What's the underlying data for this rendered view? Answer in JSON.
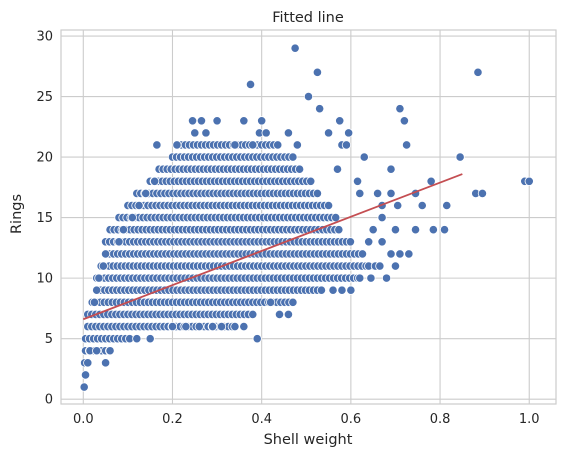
{
  "chart_data": {
    "type": "scatter",
    "title": "Fitted line",
    "xlabel": "Shell weight",
    "ylabel": "Rings",
    "xlim": [
      -0.05,
      1.06
    ],
    "ylim": [
      -0.4,
      30.5
    ],
    "xticks": [
      0.0,
      0.2,
      0.4,
      0.6,
      0.8,
      1.0
    ],
    "xtick_labels": [
      "0.0",
      "0.2",
      "0.4",
      "0.6",
      "0.8",
      "1.0"
    ],
    "yticks": [
      0,
      5,
      10,
      15,
      20,
      25,
      30
    ],
    "ytick_labels": [
      "0",
      "5",
      "10",
      "15",
      "20",
      "25",
      "30"
    ],
    "grid": true,
    "colors": {
      "points": "#4c72b0",
      "point_edge": "#ffffff",
      "fit_line": "#c44e52",
      "grid": "#cccccc",
      "spine": "#cccccc"
    },
    "band": {
      "description_of_dense_cloud": "",
      "rows": [
        {
          "y": 4,
          "x_min": 0.005,
          "x_max": 0.06
        },
        {
          "y": 5,
          "x_min": 0.005,
          "x_max": 0.11
        },
        {
          "y": 6,
          "x_min": 0.01,
          "x_max": 0.34
        },
        {
          "y": 7,
          "x_min": 0.01,
          "x_max": 0.37
        },
        {
          "y": 8,
          "x_min": 0.02,
          "x_max": 0.47
        },
        {
          "y": 9,
          "x_min": 0.03,
          "x_max": 0.54
        },
        {
          "y": 10,
          "x_min": 0.03,
          "x_max": 0.62
        },
        {
          "y": 11,
          "x_min": 0.04,
          "x_max": 0.66
        },
        {
          "y": 12,
          "x_min": 0.05,
          "x_max": 0.63
        },
        {
          "y": 13,
          "x_min": 0.05,
          "x_max": 0.6
        },
        {
          "y": 14,
          "x_min": 0.06,
          "x_max": 0.58
        },
        {
          "y": 15,
          "x_min": 0.08,
          "x_max": 0.57
        },
        {
          "y": 16,
          "x_min": 0.1,
          "x_max": 0.55
        },
        {
          "y": 17,
          "x_min": 0.12,
          "x_max": 0.53
        },
        {
          "y": 18,
          "x_min": 0.15,
          "x_max": 0.51
        },
        {
          "y": 19,
          "x_min": 0.17,
          "x_max": 0.49
        },
        {
          "y": 20,
          "x_min": 0.2,
          "x_max": 0.47
        },
        {
          "y": 21,
          "x_min": 0.22,
          "x_max": 0.44
        }
      ]
    },
    "points": [
      [
        0.002,
        1
      ],
      [
        0.005,
        2
      ],
      [
        0.003,
        3
      ],
      [
        0.01,
        3
      ],
      [
        0.015,
        4
      ],
      [
        0.03,
        4
      ],
      [
        0.06,
        4
      ],
      [
        0.475,
        29
      ],
      [
        0.885,
        27
      ],
      [
        0.525,
        27
      ],
      [
        0.375,
        26
      ],
      [
        0.505,
        25
      ],
      [
        0.53,
        24
      ],
      [
        0.71,
        24
      ],
      [
        0.245,
        23
      ],
      [
        0.265,
        23
      ],
      [
        0.3,
        23
      ],
      [
        0.36,
        23
      ],
      [
        0.4,
        23
      ],
      [
        0.575,
        23
      ],
      [
        0.72,
        23
      ],
      [
        0.25,
        22
      ],
      [
        0.275,
        22
      ],
      [
        0.395,
        22
      ],
      [
        0.41,
        22
      ],
      [
        0.46,
        22
      ],
      [
        0.55,
        22
      ],
      [
        0.595,
        22
      ],
      [
        0.165,
        21
      ],
      [
        0.21,
        21
      ],
      [
        0.34,
        21
      ],
      [
        0.38,
        21
      ],
      [
        0.48,
        21
      ],
      [
        0.58,
        21
      ],
      [
        0.59,
        21
      ],
      [
        0.725,
        21
      ],
      [
        0.16,
        18
      ],
      [
        0.14,
        17
      ],
      [
        0.125,
        16
      ],
      [
        0.11,
        15
      ],
      [
        0.09,
        14
      ],
      [
        0.08,
        13
      ],
      [
        0.05,
        12
      ],
      [
        0.045,
        11
      ],
      [
        0.035,
        10
      ],
      [
        0.03,
        9
      ],
      [
        0.025,
        8
      ],
      [
        0.63,
        20
      ],
      [
        0.845,
        20
      ],
      [
        0.57,
        19
      ],
      [
        0.615,
        18
      ],
      [
        0.67,
        16
      ],
      [
        0.66,
        17
      ],
      [
        0.62,
        17
      ],
      [
        0.69,
        19
      ],
      [
        0.69,
        17
      ],
      [
        0.745,
        17
      ],
      [
        0.705,
        16
      ],
      [
        0.76,
        16
      ],
      [
        0.78,
        18
      ],
      [
        0.88,
        17
      ],
      [
        0.895,
        17
      ],
      [
        0.815,
        16
      ],
      [
        0.99,
        18
      ],
      [
        1.0,
        18
      ],
      [
        0.67,
        15
      ],
      [
        0.7,
        14
      ],
      [
        0.745,
        14
      ],
      [
        0.785,
        14
      ],
      [
        0.81,
        14
      ],
      [
        0.69,
        12
      ],
      [
        0.71,
        12
      ],
      [
        0.73,
        12
      ],
      [
        0.64,
        11
      ],
      [
        0.655,
        11
      ],
      [
        0.665,
        11
      ],
      [
        0.7,
        11
      ],
      [
        0.68,
        10
      ],
      [
        0.645,
        10
      ],
      [
        0.65,
        14
      ],
      [
        0.64,
        13
      ],
      [
        0.67,
        13
      ],
      [
        0.39,
        5
      ],
      [
        0.36,
        6
      ],
      [
        0.34,
        6
      ],
      [
        0.38,
        7
      ],
      [
        0.44,
        7
      ],
      [
        0.46,
        7
      ],
      [
        0.47,
        8
      ],
      [
        0.42,
        8
      ],
      [
        0.56,
        9
      ],
      [
        0.58,
        9
      ],
      [
        0.6,
        9
      ],
      [
        0.62,
        10
      ],
      [
        0.05,
        3
      ],
      [
        0.12,
        5
      ],
      [
        0.15,
        5
      ],
      [
        0.2,
        6
      ],
      [
        0.23,
        6
      ],
      [
        0.26,
        6
      ],
      [
        0.29,
        6
      ],
      [
        0.31,
        6
      ]
    ],
    "fit_line": {
      "x": [
        0.0,
        0.85
      ],
      "y": [
        6.6,
        18.6
      ]
    }
  }
}
